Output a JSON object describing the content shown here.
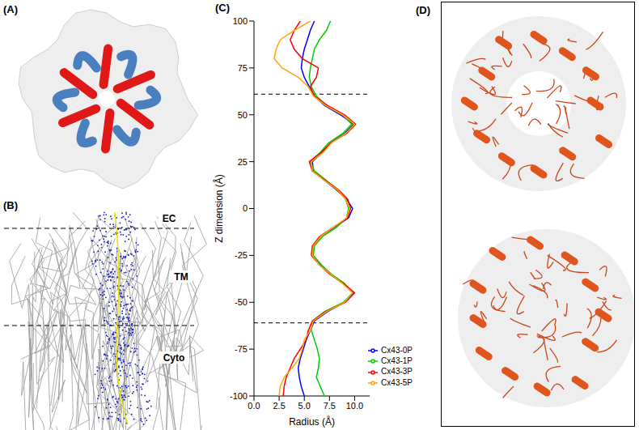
{
  "figure": {
    "panels": [
      {
        "label": "(A)"
      },
      {
        "label": "(B)",
        "regions": [
          "EC",
          "TM",
          "Cyto"
        ]
      },
      {
        "label": "(C)"
      },
      {
        "label": "(D)"
      }
    ]
  },
  "chart_data": {
    "type": "line",
    "x_label": "Radius (Å)",
    "y_label": "Z dimension (Å)",
    "y": [
      100,
      95,
      90,
      85,
      80,
      75,
      70,
      65,
      60,
      55,
      50,
      45,
      40,
      35,
      30,
      25,
      20,
      15,
      10,
      5,
      0,
      -5,
      -10,
      -15,
      -20,
      -25,
      -30,
      -35,
      -40,
      -45,
      -50,
      -55,
      -60,
      -65,
      -70,
      -75,
      -80,
      -85,
      -90,
      -95,
      -100
    ],
    "series": [
      {
        "name": "Cx43-0P",
        "color": "#0000ff",
        "values": [
          6.0,
          5.6,
          5.3,
          5.0,
          4.8,
          4.7,
          5.0,
          5.5,
          6.0,
          7.0,
          8.6,
          9.9,
          9.0,
          7.6,
          6.8,
          5.8,
          5.9,
          7.0,
          8.2,
          9.2,
          9.8,
          9.4,
          8.0,
          6.6,
          5.9,
          5.8,
          6.6,
          7.6,
          8.9,
          9.9,
          9.0,
          7.3,
          6.0,
          5.6,
          5.2,
          4.9,
          4.6,
          4.4,
          4.5,
          4.7,
          5.0
        ]
      },
      {
        "name": "Cx43-1P",
        "color": "#00cc00",
        "values": [
          7.6,
          7.2,
          6.5,
          6.0,
          5.8,
          5.6,
          5.5,
          5.7,
          6.2,
          7.2,
          8.8,
          9.7,
          8.8,
          7.4,
          6.6,
          5.6,
          6.0,
          7.2,
          8.3,
          9.1,
          9.4,
          9.2,
          8.2,
          6.8,
          6.0,
          5.9,
          6.7,
          7.7,
          9.0,
          9.8,
          8.9,
          7.0,
          5.8,
          5.7,
          6.0,
          6.3,
          6.5,
          6.4,
          6.2,
          6.6,
          7.0
        ]
      },
      {
        "name": "Cx43-3P",
        "color": "#ff0000",
        "values": [
          4.6,
          4.0,
          3.6,
          4.0,
          4.8,
          6.4,
          6.2,
          5.6,
          6.0,
          7.3,
          9.0,
          10.1,
          9.2,
          7.6,
          6.7,
          5.5,
          5.8,
          7.1,
          8.4,
          9.3,
          9.6,
          9.3,
          7.9,
          6.5,
          5.8,
          5.7,
          6.5,
          7.5,
          8.9,
          10.0,
          9.1,
          7.1,
          5.8,
          5.4,
          5.2,
          4.6,
          4.0,
          3.6,
          3.2,
          3.0,
          2.9
        ]
      },
      {
        "name": "Cx43-5P",
        "color": "#ffa500",
        "values": [
          5.6,
          4.0,
          2.6,
          2.2,
          2.0,
          2.8,
          4.4,
          5.4,
          5.9,
          7.1,
          8.8,
          10.0,
          9.1,
          7.7,
          6.9,
          5.7,
          5.8,
          7.0,
          8.3,
          9.1,
          9.5,
          9.2,
          7.9,
          6.6,
          5.9,
          5.8,
          6.5,
          7.6,
          8.8,
          9.8,
          9.0,
          7.2,
          5.9,
          5.6,
          5.0,
          4.8,
          4.5,
          3.8,
          3.0,
          2.6,
          2.5
        ]
      }
    ],
    "xlim": [
      0,
      11.5
    ],
    "xticks": [
      {
        "value": 0,
        "label": "0.0"
      },
      {
        "value": 2.5,
        "label": "2.5"
      },
      {
        "value": 5,
        "label": "5.0"
      },
      {
        "value": 7.5,
        "label": "7.5"
      },
      {
        "value": 10,
        "label": "10.0"
      }
    ],
    "ylim": [
      -100,
      100
    ],
    "yticks": [
      -100,
      -75,
      -50,
      -25,
      0,
      25,
      50,
      75,
      100
    ],
    "hlines": [
      61,
      -61
    ],
    "legend": "lower right"
  }
}
